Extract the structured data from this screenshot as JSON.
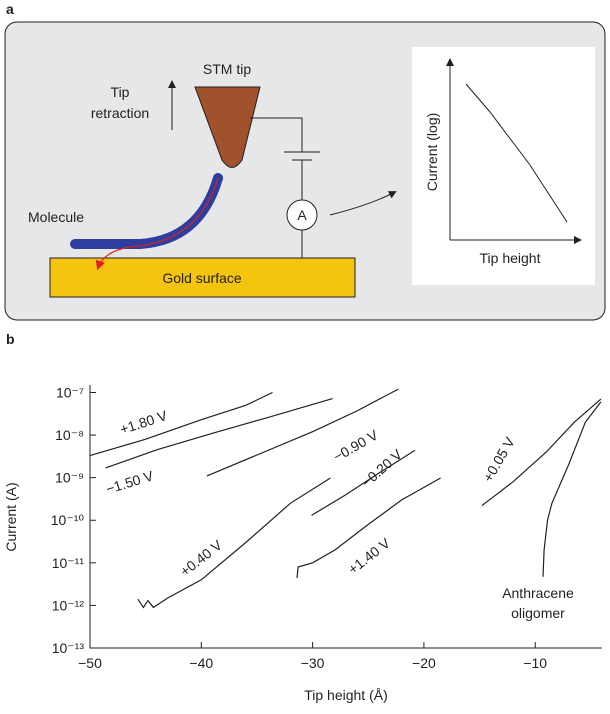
{
  "panel_a": {
    "label": "a",
    "tip": "STM tip",
    "retraction": [
      "Tip",
      "retraction"
    ],
    "molecule": "Molecule",
    "surface": "Gold surface",
    "ammeter": "A",
    "inset_ylabel": "Current (log)",
    "inset_xlabel": "Tip height"
  },
  "chart_data": {
    "type": "line",
    "panel_label": "b",
    "xlabel": "Tip height (Å)",
    "ylabel": "Current (A)",
    "log_y": true,
    "color": "#231f20",
    "xlim": [
      -50,
      -4
    ],
    "ylim": [
      1e-13,
      1.5e-07
    ],
    "xticks": [
      {
        "value": -50,
        "label": "−50"
      },
      {
        "value": -40,
        "label": "−40"
      },
      {
        "value": -30,
        "label": "−30"
      },
      {
        "value": -20,
        "label": "−20"
      },
      {
        "value": -10,
        "label": "−10"
      }
    ],
    "yticks": [
      {
        "value": 1e-13,
        "label": "10⁻¹³"
      },
      {
        "value": 1e-12,
        "label": "10⁻¹²"
      },
      {
        "value": 1e-11,
        "label": "10⁻¹¹"
      },
      {
        "value": 1e-10,
        "label": "10⁻¹⁰"
      },
      {
        "value": 1e-09,
        "label": "10⁻⁹"
      },
      {
        "value": 1e-08,
        "label": "10⁻⁸"
      },
      {
        "value": 1e-07,
        "label": "10⁻⁷"
      }
    ],
    "series": [
      {
        "name": "+1.80 V",
        "x": [
          -50,
          -45,
          -40,
          -36,
          -33.6
        ],
        "y": [
          3.3e-09,
          8e-09,
          2.3e-08,
          5e-08,
          1e-07
        ]
      },
      {
        "name": "−1.50 V",
        "x": [
          -48.6,
          -44,
          -39,
          -34,
          -28.2
        ],
        "y": [
          1.7e-09,
          4.5e-09,
          1.1e-08,
          2.6e-08,
          7.2e-08
        ]
      },
      {
        "name": "−0.90 V",
        "x": [
          -39.5,
          -35,
          -30,
          -26,
          -22.3
        ],
        "y": [
          1.1e-09,
          3.4e-09,
          1.2e-08,
          3.7e-08,
          1.2e-07
        ]
      },
      {
        "name": "+0.40 V",
        "x": [
          -45.7,
          -45.2,
          -44.8,
          -44.3,
          -43,
          -40,
          -36,
          -32,
          -28.4
        ],
        "y": [
          1.4e-12,
          9e-13,
          1.3e-12,
          9e-13,
          1.5e-12,
          4e-12,
          3e-11,
          2.5e-10,
          9.8e-10
        ]
      },
      {
        "name": "−0.20 V",
        "x": [
          -30.1,
          -27,
          -24,
          -20.8
        ],
        "y": [
          1.3e-10,
          4e-10,
          1.3e-09,
          4.4e-09
        ]
      },
      {
        "name": "+1.40 V",
        "x": [
          -31.4,
          -31.3,
          -30,
          -28,
          -25,
          -22,
          -18.5
        ],
        "y": [
          4.4e-12,
          8e-12,
          1e-11,
          2e-11,
          8e-11,
          3e-10,
          9.8e-10
        ]
      },
      {
        "name": "+0.05 V",
        "x": [
          -14.8,
          -12,
          -9,
          -6.5,
          -4.1
        ],
        "y": [
          2.2e-10,
          8e-10,
          4e-09,
          2e-08,
          7e-08
        ]
      },
      {
        "name": "Anthracene oligomer",
        "x": [
          -9.3,
          -9.2,
          -8.9,
          -8.5,
          -7,
          -5.5,
          -4.1
        ],
        "y": [
          4.7e-12,
          2e-11,
          1e-10,
          2.5e-10,
          2e-09,
          2e-08,
          6e-08
        ]
      }
    ]
  }
}
